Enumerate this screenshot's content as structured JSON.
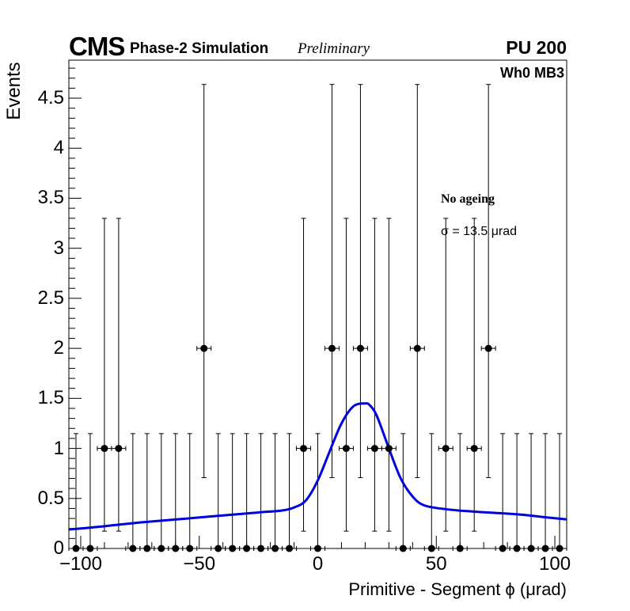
{
  "header": {
    "experiment": "CMS",
    "subtitle": "Phase-2 Simulation",
    "status": "Preliminary",
    "pileup": "PU 200",
    "station": "Wh0 MB3"
  },
  "legend": {
    "condition": "No ageing",
    "sigma_label": "σ = 13.5  μrad"
  },
  "chart_data": {
    "type": "scatter",
    "title": "",
    "xlabel": "Primitive - Segment ϕ (μrad)",
    "ylabel": "Events",
    "xlim": [
      -105,
      105
    ],
    "ylim": [
      0,
      4.88
    ],
    "x_ticks": [
      -100,
      -50,
      0,
      50,
      100
    ],
    "x_tick_labels": [
      "−100",
      "−50",
      "0",
      "50",
      "100"
    ],
    "y_ticks": [
      0,
      0.5,
      1,
      1.5,
      2,
      2.5,
      3,
      3.5,
      4,
      4.5
    ],
    "y_tick_labels": [
      "0",
      "0.5",
      "1",
      "1.5",
      "2",
      "2.5",
      "3",
      "3.5",
      "4",
      "4.5"
    ],
    "bin_width": 6,
    "series": [
      {
        "name": "Data",
        "marker": "circle",
        "color": "#000000",
        "x": [
          -102,
          -96,
          -90,
          -84,
          -78,
          -72,
          -66,
          -60,
          -54,
          -48,
          -42,
          -36,
          -30,
          -24,
          -18,
          -12,
          -6,
          0,
          6,
          12,
          18,
          24,
          30,
          36,
          42,
          48,
          54,
          60,
          66,
          72,
          78,
          84,
          90,
          96,
          102
        ],
        "y": [
          0,
          0,
          1,
          1,
          0,
          0,
          0,
          0,
          0,
          2,
          0,
          0,
          0,
          0,
          0,
          0,
          1,
          0,
          2,
          1,
          2,
          1,
          1,
          0,
          2,
          0,
          1,
          0,
          1,
          2,
          0,
          0,
          0,
          0,
          0
        ]
      },
      {
        "name": "Fit",
        "type": "line",
        "color": "#0000dd",
        "x": [
          -105,
          -95,
          -85,
          -75,
          -65,
          -55,
          -45,
          -35,
          -25,
          -15,
          -10,
          -5,
          0,
          5,
          10,
          15,
          20,
          22,
          25,
          30,
          35,
          40,
          45,
          55,
          65,
          75,
          85,
          95,
          105
        ],
        "y": [
          0.19,
          0.21,
          0.235,
          0.26,
          0.28,
          0.3,
          0.32,
          0.34,
          0.36,
          0.38,
          0.41,
          0.48,
          0.68,
          0.97,
          1.25,
          1.42,
          1.45,
          1.43,
          1.32,
          1.0,
          0.7,
          0.52,
          0.43,
          0.39,
          0.37,
          0.355,
          0.34,
          0.315,
          0.29
        ]
      }
    ],
    "annotations": [
      "No ageing",
      "σ = 13.5  μrad"
    ]
  }
}
